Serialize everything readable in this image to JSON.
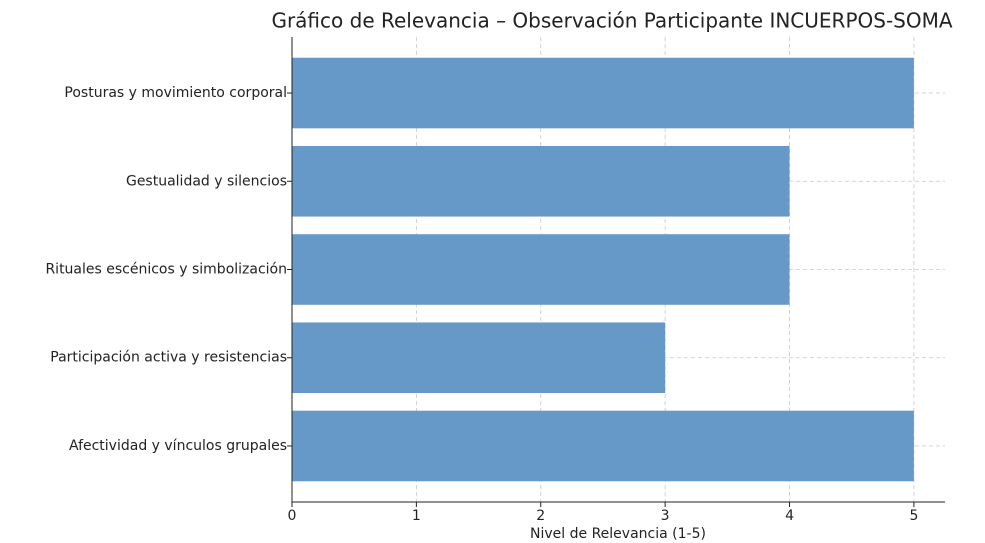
{
  "chart_data": {
    "type": "barh",
    "title": "Gráfico de Relevancia – Observación Participante INCUERPOS-SOMA",
    "categories": [
      "Posturas y movimiento corporal",
      "Gestualidad y silencios",
      "Rituales escénicos y simbolización",
      "Participación activa y resistencias",
      "Afectividad y vínculos grupales"
    ],
    "values": [
      5,
      4,
      4,
      3,
      5
    ],
    "color": "#6699c8",
    "xlabel": "Nivel de Relevancia (1-5)",
    "xlim": [
      0,
      5.25
    ],
    "xticks": [
      0,
      1,
      2,
      3,
      4,
      5
    ],
    "grid": true
  }
}
